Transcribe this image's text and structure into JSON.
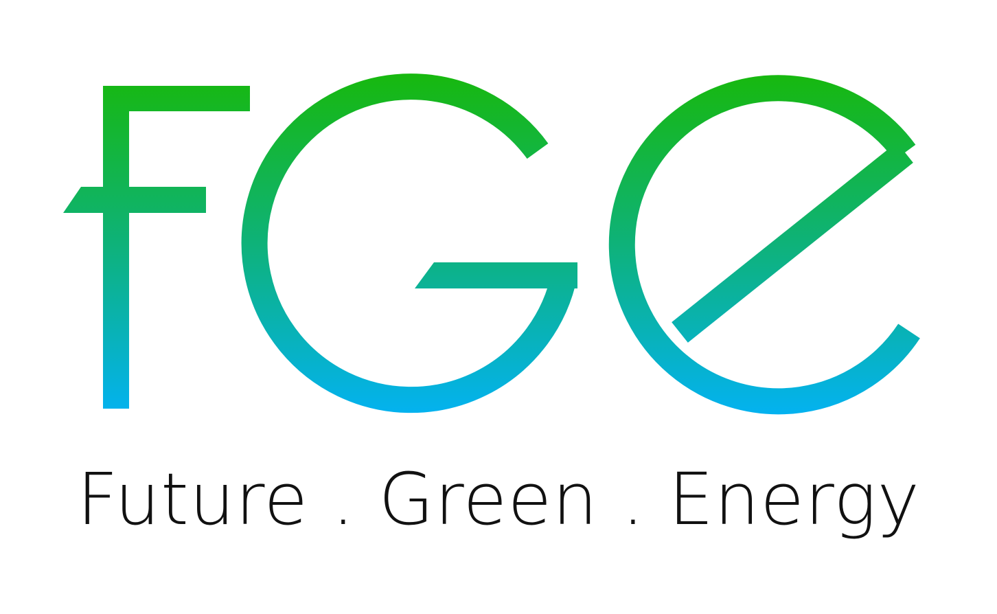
{
  "logo": {
    "mark_text": "FGE",
    "gradient_top": "#17b80f",
    "gradient_bottom": "#03b2f1"
  },
  "tagline": {
    "text": "Future . Green . Energy",
    "color": "#111111"
  },
  "background_color": "#ffffff"
}
